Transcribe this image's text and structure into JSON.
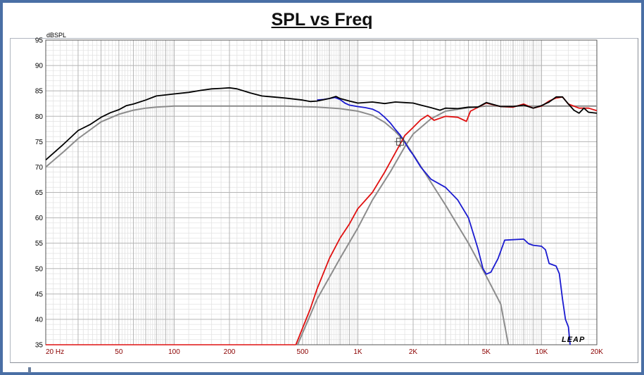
{
  "window": {
    "title": "SPL vs Freq"
  },
  "chart_data": {
    "type": "line",
    "title": "SPL vs Freq",
    "ylabel": "dBSPL",
    "xlabel": "",
    "x_scale": "log",
    "xlim": [
      20,
      20000
    ],
    "ylim": [
      35,
      95
    ],
    "x_ticks": [
      {
        "value": 20,
        "label": "20  Hz"
      },
      {
        "value": 50,
        "label": "50"
      },
      {
        "value": 100,
        "label": "100"
      },
      {
        "value": 200,
        "label": "200"
      },
      {
        "value": 500,
        "label": "500"
      },
      {
        "value": 1000,
        "label": "1K"
      },
      {
        "value": 2000,
        "label": "2K"
      },
      {
        "value": 5000,
        "label": "5K"
      },
      {
        "value": 10000,
        "label": "10K"
      },
      {
        "value": 20000,
        "label": "20K"
      }
    ],
    "y_ticks": [
      35,
      40,
      45,
      50,
      55,
      60,
      65,
      70,
      75,
      80,
      85,
      90,
      95
    ],
    "grid": true,
    "watermark": "LEAP",
    "colors": {
      "total": "#000000",
      "woofer": "#1a1ad0",
      "tweeter": "#e01010",
      "target": "#8c8c8c",
      "grid": "#c9c9c9",
      "tick_text": "#8b0000"
    },
    "series": [
      {
        "key": "target_lp",
        "color": "#8c8c8c",
        "points": [
          [
            20,
            70
          ],
          [
            25,
            73
          ],
          [
            30,
            75.6
          ],
          [
            40,
            78.9
          ],
          [
            50,
            80.4
          ],
          [
            60,
            81.2
          ],
          [
            70,
            81.6
          ],
          [
            80,
            81.8
          ],
          [
            100,
            82
          ],
          [
            200,
            82
          ],
          [
            400,
            82
          ],
          [
            600,
            81.8
          ],
          [
            800,
            81.5
          ],
          [
            1000,
            81
          ],
          [
            1200,
            80.2
          ],
          [
            1400,
            78.8
          ],
          [
            1600,
            77
          ],
          [
            1800,
            75
          ],
          [
            2000,
            72.5
          ],
          [
            2500,
            67
          ],
          [
            3000,
            62.5
          ],
          [
            4000,
            55
          ],
          [
            5000,
            48.5
          ],
          [
            6000,
            43
          ],
          [
            6600,
            35
          ]
        ]
      },
      {
        "key": "target_hp",
        "color": "#8c8c8c",
        "points": [
          [
            470,
            35
          ],
          [
            600,
            44
          ],
          [
            800,
            52
          ],
          [
            1000,
            58
          ],
          [
            1200,
            63.5
          ],
          [
            1500,
            69
          ],
          [
            1800,
            74
          ],
          [
            2000,
            76.5
          ],
          [
            2500,
            79.5
          ],
          [
            3000,
            81
          ],
          [
            4000,
            81.7
          ],
          [
            5000,
            82
          ],
          [
            10000,
            82
          ],
          [
            20000,
            82
          ]
        ]
      },
      {
        "key": "woofer",
        "color": "#1a1ad0",
        "points": [
          [
            600,
            83.2
          ],
          [
            650,
            83.3
          ],
          [
            700,
            83.5
          ],
          [
            750,
            83.7
          ],
          [
            800,
            83.3
          ],
          [
            850,
            82.6
          ],
          [
            900,
            82.2
          ],
          [
            1000,
            81.9
          ],
          [
            1100,
            81.7
          ],
          [
            1200,
            81.4
          ],
          [
            1300,
            80.8
          ],
          [
            1400,
            79.8
          ],
          [
            1500,
            78.7
          ],
          [
            1600,
            77.4
          ],
          [
            1700,
            76.3
          ],
          [
            1800,
            74.9
          ],
          [
            1900,
            73.5
          ],
          [
            2000,
            72.4
          ],
          [
            2200,
            70
          ],
          [
            2500,
            67.6
          ],
          [
            3000,
            66
          ],
          [
            3500,
            63.5
          ],
          [
            4000,
            60
          ],
          [
            4500,
            54
          ],
          [
            4800,
            50
          ],
          [
            5000,
            48.9
          ],
          [
            5300,
            49.3
          ],
          [
            5800,
            52
          ],
          [
            6300,
            55.6
          ],
          [
            8000,
            55.8
          ],
          [
            8500,
            54.9
          ],
          [
            9000,
            54.6
          ],
          [
            10000,
            54.4
          ],
          [
            10500,
            53.7
          ],
          [
            11000,
            51
          ],
          [
            12000,
            50.5
          ],
          [
            12500,
            49
          ],
          [
            13000,
            44
          ],
          [
            13500,
            40
          ],
          [
            14000,
            38.5
          ],
          [
            14300,
            35
          ]
        ]
      },
      {
        "key": "tweeter",
        "color": "#e01010",
        "points": [
          [
            460,
            35
          ],
          [
            550,
            42
          ],
          [
            600,
            46
          ],
          [
            700,
            52
          ],
          [
            800,
            56
          ],
          [
            900,
            58.8
          ],
          [
            1000,
            61.8
          ],
          [
            1200,
            65
          ],
          [
            1400,
            69
          ],
          [
            1600,
            72.8
          ],
          [
            1800,
            76.2
          ],
          [
            2000,
            77.8
          ],
          [
            2200,
            79.3
          ],
          [
            2400,
            80.2
          ],
          [
            2600,
            79.2
          ],
          [
            3000,
            80
          ],
          [
            3500,
            79.8
          ],
          [
            3900,
            79
          ],
          [
            4100,
            81
          ],
          [
            5000,
            82.6
          ],
          [
            6000,
            81.9
          ],
          [
            7000,
            81.8
          ],
          [
            8000,
            82.4
          ],
          [
            9000,
            81.6
          ],
          [
            10000,
            82
          ],
          [
            11000,
            83
          ],
          [
            12000,
            83.6
          ],
          [
            13000,
            83.8
          ],
          [
            14000,
            82.4
          ],
          [
            16000,
            81.6
          ],
          [
            18000,
            81.6
          ],
          [
            20000,
            81.1
          ]
        ]
      },
      {
        "key": "total",
        "color": "#000000",
        "points": [
          [
            20,
            71.4
          ],
          [
            25,
            74.5
          ],
          [
            30,
            77.2
          ],
          [
            35,
            78.4
          ],
          [
            40,
            79.8
          ],
          [
            45,
            80.7
          ],
          [
            50,
            81.3
          ],
          [
            55,
            82.1
          ],
          [
            60,
            82.4
          ],
          [
            70,
            83.2
          ],
          [
            80,
            84
          ],
          [
            90,
            84.2
          ],
          [
            100,
            84.4
          ],
          [
            120,
            84.7
          ],
          [
            140,
            85.1
          ],
          [
            160,
            85.4
          ],
          [
            180,
            85.5
          ],
          [
            200,
            85.6
          ],
          [
            220,
            85.4
          ],
          [
            260,
            84.6
          ],
          [
            300,
            84
          ],
          [
            400,
            83.6
          ],
          [
            500,
            83.2
          ],
          [
            550,
            82.9
          ],
          [
            600,
            83
          ],
          [
            700,
            83.5
          ],
          [
            760,
            83.9
          ],
          [
            800,
            83.5
          ],
          [
            900,
            83
          ],
          [
            1000,
            82.6
          ],
          [
            1200,
            82.8
          ],
          [
            1400,
            82.5
          ],
          [
            1600,
            82.8
          ],
          [
            1800,
            82.7
          ],
          [
            2000,
            82.6
          ],
          [
            2200,
            82.2
          ],
          [
            2500,
            81.7
          ],
          [
            2800,
            81.2
          ],
          [
            3000,
            81.6
          ],
          [
            3500,
            81.5
          ],
          [
            4000,
            81.8
          ],
          [
            4500,
            81.8
          ],
          [
            5000,
            82.7
          ],
          [
            6000,
            81.9
          ],
          [
            7000,
            81.9
          ],
          [
            8000,
            82.2
          ],
          [
            9000,
            81.6
          ],
          [
            10000,
            82.1
          ],
          [
            11000,
            82.8
          ],
          [
            12000,
            83.8
          ],
          [
            13000,
            83.8
          ],
          [
            14000,
            82.4
          ],
          [
            15000,
            81.2
          ],
          [
            16000,
            80.6
          ],
          [
            17000,
            81.6
          ],
          [
            18000,
            80.8
          ],
          [
            20000,
            80.6
          ]
        ]
      }
    ],
    "annotation": {
      "x": 1700,
      "y": 75,
      "marker": "crosshair-box"
    }
  }
}
